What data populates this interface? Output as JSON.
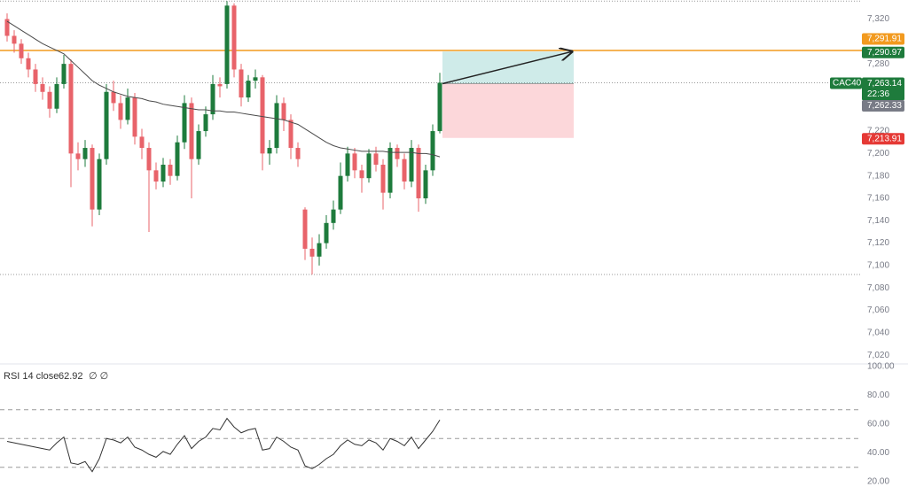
{
  "chart_data": [
    {
      "type": "candlestick",
      "symbol": "CAC40",
      "countdown": "22:36",
      "up_color": "#1e7b3c",
      "down_color": "#e8636a",
      "open": [
        7320,
        7305,
        7298,
        7285,
        7275,
        7262,
        7255,
        7240,
        7262,
        7280,
        7200,
        7195,
        7205,
        7150,
        7195,
        7255,
        7245,
        7230,
        7250,
        7215,
        7205,
        7185,
        7175,
        7190,
        7180,
        7210,
        7245,
        7195,
        7220,
        7235,
        7262,
        7262,
        7332,
        7275,
        7250,
        7265,
        7268,
        7200,
        7205,
        7245,
        7230,
        7205,
        7150,
        7115,
        7108,
        7120,
        7138,
        7150,
        7180,
        7200,
        7185,
        7178,
        7200,
        7190,
        7165,
        7205,
        7195,
        7175,
        7205,
        7160,
        7185,
        7220
      ],
      "high": [
        7325,
        7310,
        7302,
        7290,
        7280,
        7268,
        7260,
        7268,
        7288,
        7284,
        7210,
        7212,
        7208,
        7200,
        7262,
        7265,
        7252,
        7258,
        7254,
        7222,
        7210,
        7192,
        7196,
        7195,
        7216,
        7252,
        7250,
        7226,
        7242,
        7270,
        7268,
        7336,
        7334,
        7280,
        7270,
        7275,
        7270,
        7212,
        7252,
        7250,
        7235,
        7210,
        7152,
        7125,
        7128,
        7145,
        7158,
        7192,
        7206,
        7205,
        7190,
        7204,
        7206,
        7195,
        7210,
        7208,
        7200,
        7212,
        7208,
        7190,
        7226,
        7272
      ],
      "low": [
        7300,
        7290,
        7280,
        7268,
        7255,
        7248,
        7232,
        7236,
        7258,
        7170,
        7185,
        7188,
        7135,
        7145,
        7190,
        7238,
        7222,
        7226,
        7208,
        7195,
        7130,
        7168,
        7170,
        7172,
        7176,
        7204,
        7160,
        7190,
        7215,
        7230,
        7250,
        7258,
        7268,
        7242,
        7246,
        7258,
        7185,
        7190,
        7200,
        7220,
        7195,
        7188,
        7105,
        7092,
        7100,
        7115,
        7132,
        7146,
        7175,
        7178,
        7165,
        7174,
        7184,
        7150,
        7160,
        7188,
        7168,
        7170,
        7148,
        7155,
        7180,
        7218
      ],
      "close": [
        7305,
        7298,
        7285,
        7275,
        7262,
        7255,
        7240,
        7262,
        7280,
        7200,
        7195,
        7205,
        7150,
        7195,
        7255,
        7245,
        7230,
        7250,
        7215,
        7205,
        7185,
        7175,
        7190,
        7180,
        7210,
        7245,
        7195,
        7220,
        7235,
        7262,
        7260,
        7332,
        7275,
        7250,
        7265,
        7268,
        7200,
        7205,
        7245,
        7230,
        7205,
        7195,
        7115,
        7108,
        7120,
        7138,
        7150,
        7180,
        7200,
        7185,
        7178,
        7200,
        7190,
        7165,
        7205,
        7195,
        7175,
        7205,
        7160,
        7185,
        7220,
        7263.14
      ],
      "close_label": "7,263.14",
      "series": [
        {
          "color": "#4a4a4a",
          "values": [
            7318,
            7314,
            7310,
            7306,
            7302,
            7298,
            7295,
            7292,
            7289,
            7283,
            7277,
            7271,
            7265,
            7261,
            7258,
            7255,
            7253,
            7251,
            7250,
            7249,
            7247,
            7246,
            7244,
            7243,
            7242,
            7241,
            7240,
            7239,
            7239,
            7238,
            7238,
            7237,
            7237,
            7236,
            7235,
            7234,
            7233,
            7232,
            7231,
            7230,
            7228,
            7226,
            7222,
            7218,
            7214,
            7210,
            7207,
            7205,
            7204,
            7203,
            7202,
            7202,
            7202,
            7202,
            7201,
            7201,
            7201,
            7201,
            7200,
            7200,
            7199,
            7197
          ]
        }
      ],
      "level": {
        "value": 7291.91,
        "label": "7,291.91",
        "color": "#f29a1f"
      },
      "position": {
        "target": {
          "value": 7290.97,
          "label": "7,290.97"
        },
        "entry": {
          "value": 7262.33,
          "label": "7,262.33"
        },
        "stop": {
          "value": 7213.91,
          "label": "7,213.91"
        }
      },
      "ylim": [
        7013,
        7337
      ],
      "yticks": [
        {
          "value": 7320,
          "label": "7,320"
        },
        {
          "value": 7280,
          "label": "7,280"
        },
        {
          "value": 7220,
          "label": "7,220"
        },
        {
          "value": 7200,
          "label": "7,200"
        },
        {
          "value": 7180,
          "label": "7,180"
        },
        {
          "value": 7160,
          "label": "7,160"
        },
        {
          "value": 7140,
          "label": "7,140"
        },
        {
          "value": 7120,
          "label": "7,120"
        },
        {
          "value": 7100,
          "label": "7,100"
        },
        {
          "value": 7080,
          "label": "7,080"
        },
        {
          "value": 7060,
          "label": "7,060"
        },
        {
          "value": 7040,
          "label": "7,040"
        },
        {
          "value": 7020,
          "label": "7,020"
        }
      ]
    },
    {
      "type": "line",
      "title": "RSI 14 close",
      "extra": "∅ ∅",
      "color": "#333333",
      "values": [
        48,
        47,
        46,
        45,
        44,
        43,
        42,
        47,
        51,
        33,
        32,
        34,
        27,
        36,
        50,
        49,
        47,
        51,
        44,
        42,
        39,
        37,
        41,
        39,
        46,
        52,
        43,
        48,
        51,
        57,
        56,
        64,
        58,
        54,
        56,
        57,
        42,
        43,
        51,
        48,
        44,
        42,
        31,
        29,
        32,
        36,
        39,
        45,
        49,
        46,
        45,
        49,
        47,
        42,
        50,
        48,
        45,
        51,
        43,
        49,
        55,
        62.92
      ],
      "bands": [
        70,
        50,
        30
      ],
      "ylim": [
        20,
        100
      ],
      "yticks": [
        {
          "value": 100,
          "label": "100.00"
        },
        {
          "value": 80,
          "label": "80.00"
        },
        {
          "value": 60,
          "label": "60.00"
        },
        {
          "value": 40,
          "label": "40.00"
        },
        {
          "value": 20,
          "label": "20.00"
        }
      ]
    }
  ]
}
